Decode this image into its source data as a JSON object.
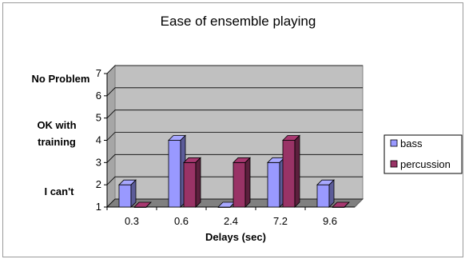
{
  "chart_data": {
    "type": "bar",
    "title": "Ease of ensemble playing",
    "xlabel": "Delays (sec)",
    "ylabel": "",
    "categories": [
      "0.3",
      "0.6",
      "2.4",
      "7.2",
      "9.6"
    ],
    "series": [
      {
        "name": "bass",
        "values": [
          2,
          4,
          1,
          3,
          2
        ],
        "color": "#9999ff"
      },
      {
        "name": "percussion",
        "values": [
          1,
          3,
          3,
          4,
          1
        ],
        "color": "#993366"
      }
    ],
    "ylim": [
      1,
      7
    ],
    "yticks": [
      "1",
      "2",
      "3",
      "4",
      "5",
      "6",
      "7"
    ],
    "grid": true,
    "legend": "right",
    "band_labels": [
      "No Problem",
      "OK with",
      "training",
      "I can't"
    ],
    "plot_background": "#c0c0c0",
    "plot_floor": "#808080"
  }
}
